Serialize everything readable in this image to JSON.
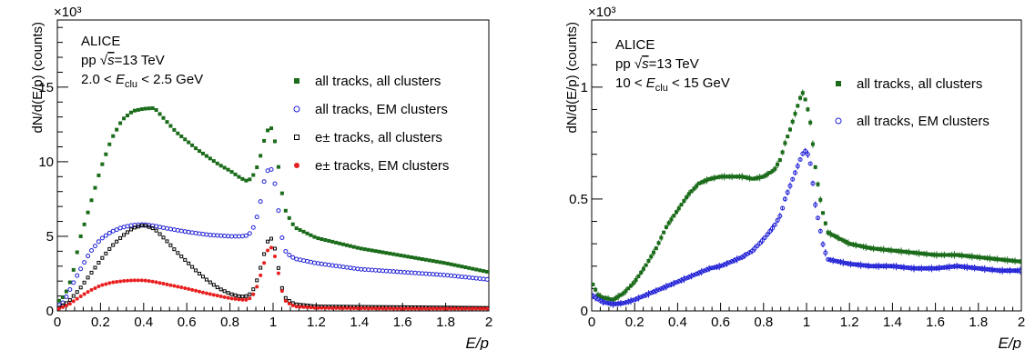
{
  "chart_data": [
    {
      "type": "scatter",
      "experiment": "ALICE",
      "system": "pp",
      "sqrt_s": "√s=13 TeV",
      "ecl_lo": "2.0",
      "ecl_hi": "2.5 GeV",
      "ylabel": "dN/d(E/p) (counts)",
      "xlabel": "E/p",
      "exponent": "×10³",
      "xlim": [
        0,
        2
      ],
      "ylim": [
        0,
        19.5
      ],
      "xticks": [
        0,
        0.2,
        0.4,
        0.6,
        0.8,
        1,
        1.2,
        1.4,
        1.6,
        1.8,
        2
      ],
      "yticks": [
        0,
        5,
        10,
        15
      ],
      "legend_position": "right",
      "series": [
        {
          "name": "all tracks, all clusters",
          "marker": "filled-square",
          "color": "#1a6b1a",
          "points": [
            [
              0,
              0.6
            ],
            [
              0.02,
              0.8
            ],
            [
              0.05,
              1.5
            ],
            [
              0.08,
              3
            ],
            [
              0.1,
              4.6
            ],
            [
              0.15,
              7
            ],
            [
              0.2,
              9.5
            ],
            [
              0.25,
              11.5
            ],
            [
              0.3,
              12.8
            ],
            [
              0.35,
              13.4
            ],
            [
              0.4,
              13.55
            ],
            [
              0.45,
              13.6
            ],
            [
              0.5,
              12.8
            ],
            [
              0.55,
              12
            ],
            [
              0.6,
              11.4
            ],
            [
              0.65,
              10.8
            ],
            [
              0.7,
              10.3
            ],
            [
              0.75,
              9.8
            ],
            [
              0.8,
              9.4
            ],
            [
              0.85,
              8.9
            ],
            [
              0.88,
              8.7
            ],
            [
              0.9,
              8.9
            ],
            [
              0.92,
              9.4
            ],
            [
              0.94,
              10.3
            ],
            [
              0.96,
              11.5
            ],
            [
              0.98,
              12.3
            ],
            [
              1,
              12.2
            ],
            [
              1.02,
              10.2
            ],
            [
              1.04,
              8
            ],
            [
              1.06,
              6.6
            ],
            [
              1.1,
              5.6
            ],
            [
              1.2,
              4.9
            ],
            [
              1.4,
              4.2
            ],
            [
              1.6,
              3.7
            ],
            [
              1.8,
              3.2
            ],
            [
              2,
              2.6
            ]
          ]
        },
        {
          "name": "all tracks, EM clusters",
          "marker": "open-circle",
          "color": "#1f1fd6",
          "points": [
            [
              0,
              0.3
            ],
            [
              0.03,
              0.6
            ],
            [
              0.05,
              1.2
            ],
            [
              0.1,
              2.6
            ],
            [
              0.15,
              3.9
            ],
            [
              0.2,
              4.8
            ],
            [
              0.25,
              5.3
            ],
            [
              0.3,
              5.6
            ],
            [
              0.35,
              5.75
            ],
            [
              0.4,
              5.8
            ],
            [
              0.45,
              5.7
            ],
            [
              0.5,
              5.55
            ],
            [
              0.6,
              5.3
            ],
            [
              0.7,
              5.1
            ],
            [
              0.8,
              5.0
            ],
            [
              0.85,
              5.0
            ],
            [
              0.88,
              5.05
            ],
            [
              0.9,
              5.3
            ],
            [
              0.92,
              6.0
            ],
            [
              0.94,
              7.2
            ],
            [
              0.96,
              8.8
            ],
            [
              0.98,
              9.6
            ],
            [
              1,
              9.4
            ],
            [
              1.02,
              7.3
            ],
            [
              1.04,
              5.0
            ],
            [
              1.06,
              3.9
            ],
            [
              1.1,
              3.5
            ],
            [
              1.2,
              3.2
            ],
            [
              1.4,
              2.8
            ],
            [
              1.6,
              2.6
            ],
            [
              1.8,
              2.4
            ],
            [
              2,
              2.1
            ]
          ]
        },
        {
          "name": "e± tracks, all clusters",
          "marker": "open-square",
          "color": "#000000",
          "points": [
            [
              0,
              0.15
            ],
            [
              0.05,
              0.6
            ],
            [
              0.1,
              1.4
            ],
            [
              0.15,
              2.4
            ],
            [
              0.2,
              3.4
            ],
            [
              0.25,
              4.3
            ],
            [
              0.3,
              5.0
            ],
            [
              0.35,
              5.55
            ],
            [
              0.4,
              5.75
            ],
            [
              0.45,
              5.5
            ],
            [
              0.5,
              4.8
            ],
            [
              0.55,
              4.0
            ],
            [
              0.6,
              3.3
            ],
            [
              0.65,
              2.6
            ],
            [
              0.7,
              2.0
            ],
            [
              0.75,
              1.5
            ],
            [
              0.8,
              1.15
            ],
            [
              0.85,
              0.95
            ],
            [
              0.88,
              1.0
            ],
            [
              0.9,
              1.2
            ],
            [
              0.92,
              1.8
            ],
            [
              0.94,
              2.8
            ],
            [
              0.96,
              3.9
            ],
            [
              0.98,
              4.9
            ],
            [
              1,
              4.8
            ],
            [
              1.02,
              3.3
            ],
            [
              1.04,
              1.6
            ],
            [
              1.06,
              0.8
            ],
            [
              1.1,
              0.45
            ],
            [
              1.2,
              0.3
            ],
            [
              1.6,
              0.25
            ],
            [
              2,
              0.2
            ]
          ]
        },
        {
          "name": "e± tracks, EM clusters",
          "marker": "filled-circle",
          "color": "#e81e1e",
          "points": [
            [
              0,
              0.1
            ],
            [
              0.05,
              0.4
            ],
            [
              0.1,
              0.9
            ],
            [
              0.15,
              1.35
            ],
            [
              0.2,
              1.7
            ],
            [
              0.25,
              1.9
            ],
            [
              0.3,
              2.0
            ],
            [
              0.35,
              2.05
            ],
            [
              0.4,
              2.05
            ],
            [
              0.45,
              1.95
            ],
            [
              0.5,
              1.8
            ],
            [
              0.6,
              1.5
            ],
            [
              0.7,
              1.15
            ],
            [
              0.8,
              0.85
            ],
            [
              0.85,
              0.75
            ],
            [
              0.88,
              0.75
            ],
            [
              0.9,
              0.9
            ],
            [
              0.92,
              1.4
            ],
            [
              0.94,
              2.3
            ],
            [
              0.96,
              3.3
            ],
            [
              0.98,
              4.3
            ],
            [
              1,
              4.2
            ],
            [
              1.02,
              2.9
            ],
            [
              1.04,
              1.4
            ],
            [
              1.06,
              0.6
            ],
            [
              1.1,
              0.3
            ],
            [
              1.2,
              0.2
            ],
            [
              1.6,
              0.15
            ],
            [
              2,
              0.15
            ]
          ]
        }
      ]
    },
    {
      "type": "scatter",
      "experiment": "ALICE",
      "system": "pp",
      "sqrt_s": "√s=13 TeV",
      "ecl_lo": "10",
      "ecl_hi": "15 GeV",
      "ylabel": "dN/d(E/p) (counts)",
      "xlabel": "E/p",
      "exponent": "×10³",
      "xlim": [
        0,
        2
      ],
      "ylim": [
        0,
        1.3
      ],
      "xticks": [
        0,
        0.2,
        0.4,
        0.6,
        0.8,
        1,
        1.2,
        1.4,
        1.6,
        1.8,
        2
      ],
      "yticks": [
        0,
        0.5,
        1
      ],
      "legend_position": "right",
      "series": [
        {
          "name": "all tracks, all clusters",
          "marker": "filled-square",
          "color": "#1a6b1a",
          "points": [
            [
              0,
              0.13
            ],
            [
              0.03,
              0.07
            ],
            [
              0.05,
              0.06
            ],
            [
              0.1,
              0.05
            ],
            [
              0.15,
              0.08
            ],
            [
              0.2,
              0.13
            ],
            [
              0.25,
              0.2
            ],
            [
              0.3,
              0.28
            ],
            [
              0.35,
              0.38
            ],
            [
              0.4,
              0.45
            ],
            [
              0.45,
              0.52
            ],
            [
              0.5,
              0.57
            ],
            [
              0.55,
              0.59
            ],
            [
              0.6,
              0.6
            ],
            [
              0.65,
              0.6
            ],
            [
              0.7,
              0.6
            ],
            [
              0.75,
              0.59
            ],
            [
              0.8,
              0.6
            ],
            [
              0.85,
              0.63
            ],
            [
              0.88,
              0.68
            ],
            [
              0.9,
              0.75
            ],
            [
              0.92,
              0.8
            ],
            [
              0.94,
              0.86
            ],
            [
              0.96,
              0.92
            ],
            [
              0.98,
              0.98
            ],
            [
              1,
              0.93
            ],
            [
              1.02,
              0.83
            ],
            [
              1.04,
              0.65
            ],
            [
              1.06,
              0.52
            ],
            [
              1.08,
              0.42
            ],
            [
              1.1,
              0.35
            ],
            [
              1.2,
              0.3
            ],
            [
              1.3,
              0.28
            ],
            [
              1.4,
              0.27
            ],
            [
              1.5,
              0.26
            ],
            [
              1.6,
              0.25
            ],
            [
              1.7,
              0.25
            ],
            [
              1.8,
              0.24
            ],
            [
              1.9,
              0.23
            ],
            [
              2,
              0.22
            ]
          ]
        },
        {
          "name": "all tracks, EM clusters",
          "marker": "open-circle",
          "color": "#1f1fd6",
          "points": [
            [
              0,
              0.07
            ],
            [
              0.05,
              0.04
            ],
            [
              0.1,
              0.03
            ],
            [
              0.15,
              0.035
            ],
            [
              0.2,
              0.05
            ],
            [
              0.25,
              0.07
            ],
            [
              0.3,
              0.09
            ],
            [
              0.35,
              0.11
            ],
            [
              0.4,
              0.13
            ],
            [
              0.45,
              0.15
            ],
            [
              0.5,
              0.17
            ],
            [
              0.55,
              0.19
            ],
            [
              0.6,
              0.2
            ],
            [
              0.65,
              0.22
            ],
            [
              0.7,
              0.24
            ],
            [
              0.75,
              0.27
            ],
            [
              0.8,
              0.32
            ],
            [
              0.85,
              0.38
            ],
            [
              0.88,
              0.43
            ],
            [
              0.9,
              0.5
            ],
            [
              0.92,
              0.55
            ],
            [
              0.94,
              0.6
            ],
            [
              0.96,
              0.65
            ],
            [
              0.98,
              0.7
            ],
            [
              1,
              0.72
            ],
            [
              1.02,
              0.65
            ],
            [
              1.04,
              0.48
            ],
            [
              1.06,
              0.38
            ],
            [
              1.08,
              0.28
            ],
            [
              1.1,
              0.23
            ],
            [
              1.2,
              0.21
            ],
            [
              1.3,
              0.2
            ],
            [
              1.4,
              0.2
            ],
            [
              1.5,
              0.19
            ],
            [
              1.6,
              0.19
            ],
            [
              1.7,
              0.2
            ],
            [
              1.8,
              0.19
            ],
            [
              1.9,
              0.18
            ],
            [
              2,
              0.18
            ]
          ]
        }
      ]
    }
  ]
}
